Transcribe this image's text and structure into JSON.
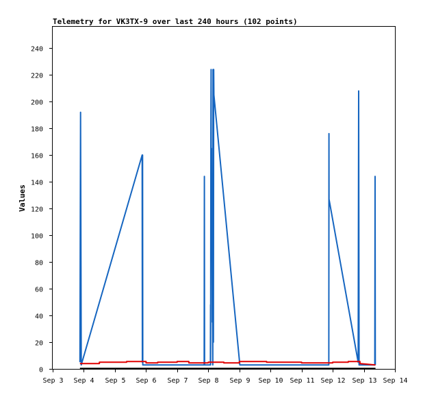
{
  "chart_data": {
    "type": "line",
    "title": "Telemetry for VK3TX-9 over last 240 hours (102 points)",
    "xlabel": "",
    "ylabel": "Values",
    "x_tick_labels": [
      "Sep 3",
      "Sep 4",
      "Sep 5",
      "Sep 6",
      "Sep 7",
      "Sep 8",
      "Sep 9",
      "Sep 10",
      "Sep 11",
      "Sep 12",
      "Sep 13",
      "Sep 14"
    ],
    "xlim": [
      "Sep 3 00:00",
      "Sep 14 00:00"
    ],
    "y_ticks": [
      0,
      20,
      40,
      60,
      80,
      100,
      120,
      140,
      160,
      180,
      200,
      220,
      240
    ],
    "ylim": [
      0,
      256
    ],
    "grid": false,
    "legend": "none",
    "series": [
      {
        "color": "#1565c0",
        "points": [
          [
            "Sep 3 21:00",
            5
          ],
          [
            "Sep 3 21:30",
            192
          ],
          [
            "Sep 3 22:00",
            3
          ],
          [
            "Sep 5 21:00",
            160
          ],
          [
            "Sep 5 21:10",
            5
          ],
          [
            "Sep 5 21:20",
            160
          ],
          [
            "Sep 5 21:30",
            3
          ],
          [
            "Sep 7 20:50",
            3
          ],
          [
            "Sep 7 21:00",
            144
          ],
          [
            "Sep 7 21:10",
            3
          ],
          [
            "Sep 8 01:40",
            3
          ],
          [
            "Sep 8 01:45",
            48
          ],
          [
            "Sep 8 01:50",
            3
          ],
          [
            "Sep 8 02:00",
            176
          ],
          [
            "Sep 8 02:10",
            224
          ],
          [
            "Sep 8 02:20",
            110
          ],
          [
            "Sep 8 02:30",
            165
          ],
          [
            "Sep 8 02:40",
            100
          ],
          [
            "Sep 8 02:50",
            143
          ],
          [
            "Sep 8 03:05",
            35
          ],
          [
            "Sep 8 03:15",
            60
          ],
          [
            "Sep 8 03:30",
            3
          ],
          [
            "Sep 8 03:40",
            224
          ],
          [
            "Sep 8 03:50",
            224
          ],
          [
            "Sep 8 04:00",
            20
          ],
          [
            "Sep 8 04:10",
            224
          ],
          [
            "Sep 8 04:20",
            205
          ],
          [
            "Sep 9 00:20",
            3
          ],
          [
            "Sep 11 21:00",
            3
          ],
          [
            "Sep 11 21:05",
            176
          ],
          [
            "Sep 11 21:10",
            127
          ],
          [
            "Sep 12 19:40",
            5
          ],
          [
            "Sep 12 20:00",
            208
          ],
          [
            "Sep 12 20:20",
            3
          ],
          [
            "Sep 13 08:30",
            3
          ],
          [
            "Sep 13 08:40",
            144
          ],
          [
            "Sep 13 08:50",
            3
          ]
        ]
      },
      {
        "color": "#e00000",
        "points": [
          [
            "Sep 3 21:00",
            4
          ],
          [
            "Sep 4 12:00",
            4
          ],
          [
            "Sep 4 12:00",
            5
          ],
          [
            "Sep 5 09:00",
            5
          ],
          [
            "Sep 5 09:00",
            5.5
          ],
          [
            "Sep 6 00:00",
            5.5
          ],
          [
            "Sep 6 00:00",
            4.5
          ],
          [
            "Sep 6 09:00",
            4.5
          ],
          [
            "Sep 6 09:00",
            5
          ],
          [
            "Sep 7 00:00",
            5
          ],
          [
            "Sep 7 00:00",
            5.5
          ],
          [
            "Sep 7 09:00",
            5.5
          ],
          [
            "Sep 7 09:00",
            4.5
          ],
          [
            "Sep 8 00:00",
            4.5
          ],
          [
            "Sep 8 00:00",
            5
          ],
          [
            "Sep 8 12:00",
            5
          ],
          [
            "Sep 8 12:00",
            4.5
          ],
          [
            "Sep 9 00:00",
            4.5
          ],
          [
            "Sep 9 00:00",
            5.5
          ],
          [
            "Sep 9 21:00",
            5.5
          ],
          [
            "Sep 9 21:00",
            5
          ],
          [
            "Sep 11 00:00",
            5
          ],
          [
            "Sep 11 00:00",
            4.5
          ],
          [
            "Sep 12 00:00",
            4.5
          ],
          [
            "Sep 12 00:00",
            5
          ],
          [
            "Sep 12 12:00",
            5
          ],
          [
            "Sep 12 12:00",
            5.5
          ],
          [
            "Sep 12 21:00",
            5.5
          ],
          [
            "Sep 12 21:00",
            4
          ],
          [
            "Sep 13 09:00",
            3
          ]
        ]
      },
      {
        "color": "#000000",
        "points": [
          [
            "Sep 3 21:00",
            0.3
          ],
          [
            "Sep 13 09:00",
            0.3
          ]
        ]
      }
    ]
  }
}
